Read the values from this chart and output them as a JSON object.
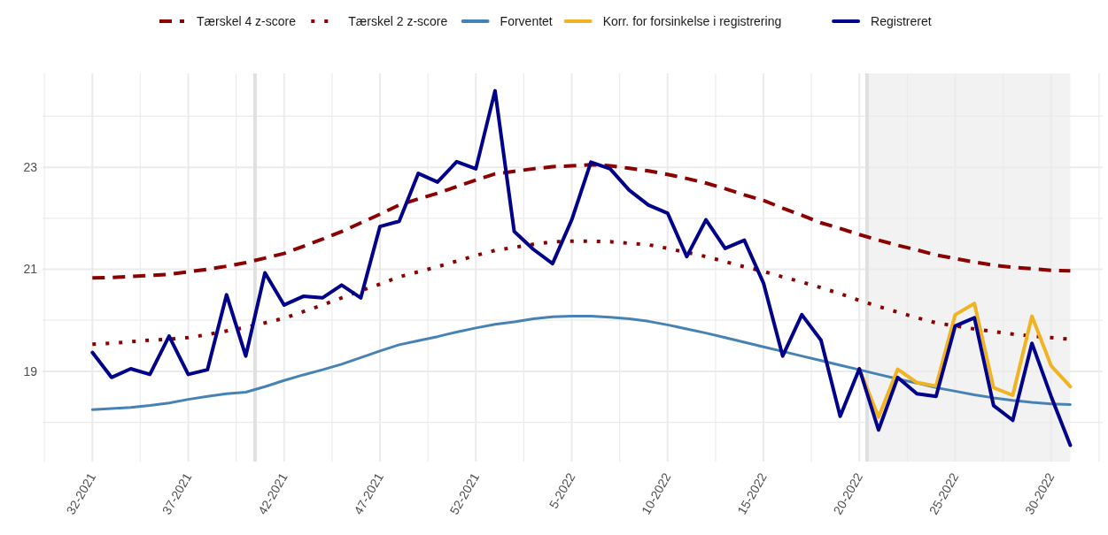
{
  "chart_data": {
    "type": "line",
    "categories": [
      "32-2021",
      null,
      null,
      null,
      null,
      "37-2021",
      null,
      null,
      null,
      null,
      "42-2021",
      null,
      null,
      null,
      null,
      "47-2021",
      null,
      null,
      null,
      null,
      "52-2021",
      null,
      null,
      null,
      null,
      "5-2022",
      null,
      null,
      null,
      null,
      "10-2022",
      null,
      null,
      null,
      null,
      "15-2022",
      null,
      null,
      null,
      null,
      "20-2022",
      null,
      null,
      null,
      null,
      "25-2022",
      null,
      null,
      null,
      null,
      "30-2022",
      null
    ],
    "ylim": [
      17.23,
      24.84
    ],
    "yticks": [
      {
        "value": 18,
        "label": null
      },
      19,
      {
        "value": 20,
        "label": null
      },
      21,
      {
        "value": 22,
        "label": null
      },
      23,
      {
        "value": 24,
        "label": null
      }
    ],
    "grid": true,
    "legend": "top",
    "marker": "none",
    "series": [
      {
        "name": "Tærskel 4 z-score",
        "color": "#8b0000",
        "line_style": "dashed",
        "values": [
          20.83,
          20.84,
          20.86,
          20.88,
          20.9,
          20.95,
          21.0,
          21.06,
          21.13,
          21.22,
          21.31,
          21.45,
          21.59,
          21.74,
          21.91,
          22.08,
          22.26,
          22.38,
          22.49,
          22.62,
          22.75,
          22.87,
          22.92,
          22.97,
          23.01,
          23.03,
          23.05,
          23.03,
          22.98,
          22.93,
          22.86,
          22.78,
          22.69,
          22.58,
          22.46,
          22.35,
          22.2,
          22.06,
          21.91,
          21.8,
          21.68,
          21.57,
          21.47,
          21.38,
          21.28,
          21.21,
          21.14,
          21.08,
          21.04,
          21.01,
          20.98,
          20.97
        ]
      },
      {
        "name": "Tærskel 2 z-score",
        "color": "#8b0000",
        "line_style": "dotted",
        "values": [
          19.53,
          19.55,
          19.58,
          19.61,
          19.63,
          19.66,
          19.72,
          19.79,
          19.86,
          19.95,
          20.04,
          20.17,
          20.3,
          20.44,
          20.58,
          20.71,
          20.85,
          20.95,
          21.05,
          21.16,
          21.27,
          21.37,
          21.43,
          21.49,
          21.54,
          21.55,
          21.55,
          21.54,
          21.51,
          21.48,
          21.41,
          21.33,
          21.25,
          21.15,
          21.05,
          20.96,
          20.85,
          20.75,
          20.64,
          20.52,
          20.39,
          20.27,
          20.16,
          20.05,
          19.95,
          19.89,
          19.83,
          19.78,
          19.73,
          19.69,
          19.66,
          19.63
        ]
      },
      {
        "name": "Forventet",
        "color": "#4682b4",
        "line_style": "solid",
        "values": [
          18.25,
          18.27,
          18.29,
          18.33,
          18.38,
          18.45,
          18.51,
          18.56,
          18.59,
          18.7,
          18.82,
          18.93,
          19.03,
          19.14,
          19.27,
          19.4,
          19.52,
          19.6,
          19.68,
          19.77,
          19.85,
          19.92,
          19.97,
          20.03,
          20.07,
          20.08,
          20.08,
          20.06,
          20.03,
          19.98,
          19.91,
          19.83,
          19.75,
          19.66,
          19.57,
          19.48,
          19.39,
          19.3,
          19.21,
          19.12,
          19.03,
          18.94,
          18.85,
          18.77,
          18.68,
          18.61,
          18.54,
          18.48,
          18.43,
          18.39,
          18.36,
          18.35
        ]
      },
      {
        "name": "Korr. for forsinkelse i registrering",
        "color": "#f0b323",
        "line_style": "solid",
        "values": [
          null,
          null,
          null,
          null,
          null,
          null,
          null,
          null,
          null,
          null,
          null,
          null,
          null,
          null,
          null,
          null,
          null,
          null,
          null,
          null,
          null,
          null,
          null,
          null,
          null,
          null,
          null,
          null,
          null,
          null,
          null,
          null,
          null,
          null,
          null,
          null,
          null,
          null,
          null,
          null,
          19.05,
          18.1,
          19.04,
          18.78,
          18.71,
          20.11,
          20.33,
          18.68,
          18.53,
          20.08,
          19.11,
          18.7
        ]
      },
      {
        "name": "Registreret",
        "color": "#00008b",
        "line_style": "solid",
        "values": [
          19.37,
          18.88,
          19.05,
          18.94,
          19.69,
          18.94,
          19.03,
          20.5,
          19.3,
          20.93,
          20.3,
          20.47,
          20.44,
          20.69,
          20.44,
          21.84,
          21.94,
          22.88,
          22.71,
          23.11,
          22.97,
          24.5,
          21.74,
          21.39,
          21.11,
          21.97,
          23.1,
          22.97,
          22.55,
          22.26,
          22.1,
          21.25,
          21.97,
          21.41,
          21.57,
          20.73,
          19.3,
          20.11,
          19.61,
          18.12,
          19.05,
          17.85,
          18.88,
          18.56,
          18.51,
          19.89,
          20.05,
          18.33,
          18.04,
          19.55,
          18.51,
          17.55
        ]
      }
    ]
  }
}
